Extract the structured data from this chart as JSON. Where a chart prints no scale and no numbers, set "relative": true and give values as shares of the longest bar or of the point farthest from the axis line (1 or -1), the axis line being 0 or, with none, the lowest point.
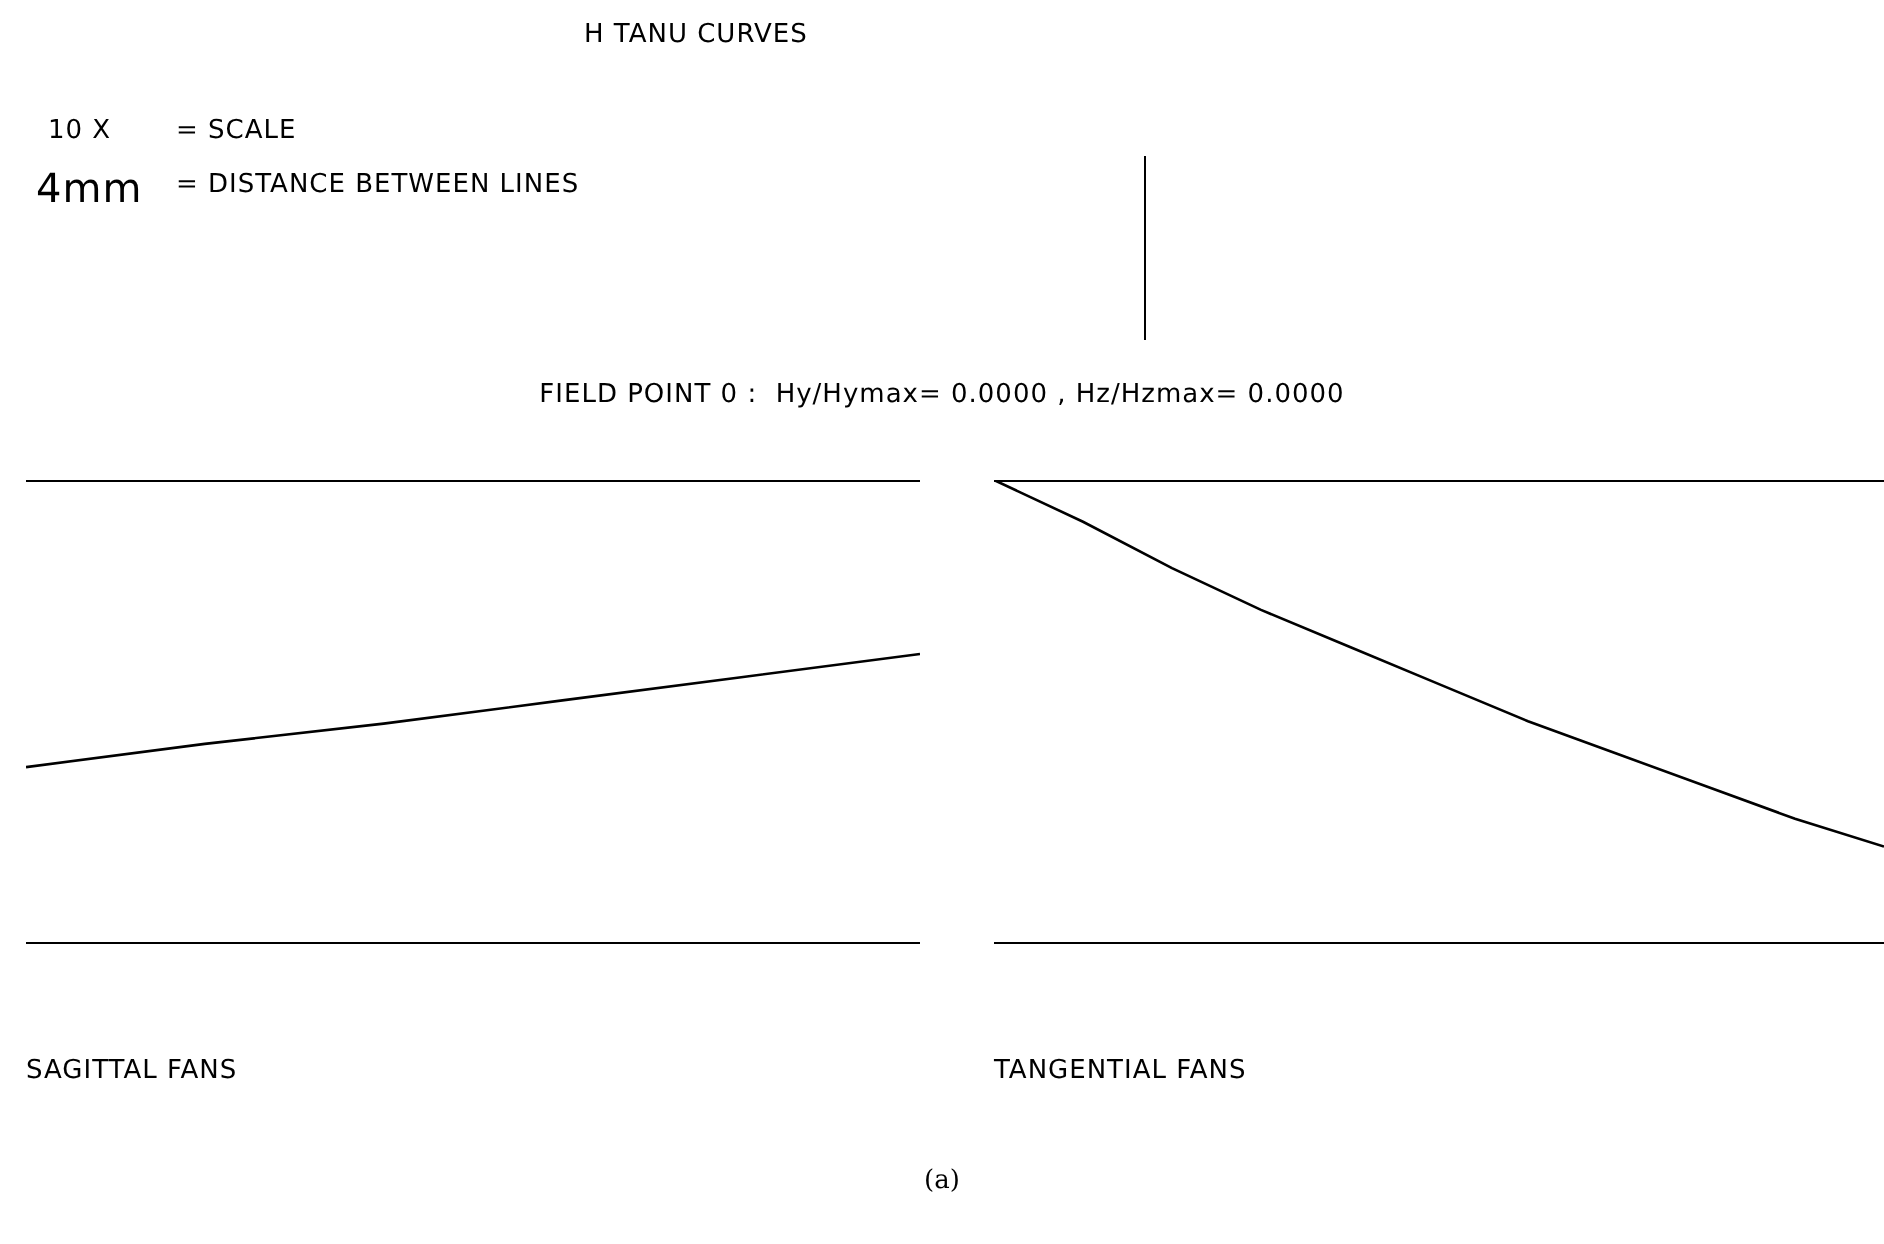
{
  "chart_data": [
    {
      "type": "line",
      "relative": true,
      "xlabel": "SAGITTAL FANS",
      "annotations": [
        "H TANU CURVES",
        "10 X",
        "= SCALE",
        "4mm",
        "= DISTANCE BETWEEN LINES",
        "FIELD POINT 0 :  Hy/Hymax= 0.0000 , Hz/Hzmax= 0.0000",
        "(a)"
      ],
      "categories": [
        null,
        null,
        null,
        null,
        null,
        null
      ],
      "series": [
        {
          "color": "#000000",
          "values": [
            0.61,
            0.69,
            0.76,
            0.84,
            0.92,
            1
          ]
        }
      ]
    },
    {
      "type": "line",
      "relative": true,
      "xlabel": "TANGENTIAL FANS",
      "categories": [
        null,
        null,
        null,
        null,
        null,
        null,
        null,
        null,
        null,
        null,
        null
      ],
      "series": [
        {
          "color": "#000000",
          "values": [
            1,
            0.91,
            0.81,
            0.72,
            0.64,
            0.56,
            0.48,
            0.41,
            0.34,
            0.27,
            0.21
          ]
        }
      ]
    }
  ]
}
